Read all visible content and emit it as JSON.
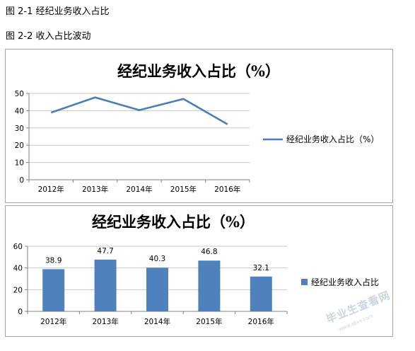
{
  "captions": {
    "fig1": "图 2-1 经纪业务收入占比",
    "fig2": "图 2-2 收入占比波动"
  },
  "chart_data": [
    {
      "type": "line",
      "title": "经纪业务收入占比（%）",
      "categories": [
        "2012年",
        "2013年",
        "2014年",
        "2015年",
        "2016年"
      ],
      "series": [
        {
          "name": "经纪业务收入占比（%）",
          "values": [
            38.9,
            47.7,
            40.3,
            46.8,
            32.1
          ],
          "color": "#4a7ebb"
        }
      ],
      "ylim": [
        0,
        50
      ],
      "yticks": [
        "0",
        "10",
        "20",
        "30",
        "40",
        "50"
      ],
      "grid": true,
      "legend": "right"
    },
    {
      "type": "bar",
      "title": "经纪业务收入占比（%）",
      "categories": [
        "2012年",
        "2013年",
        "2014年",
        "2015年",
        "2016年"
      ],
      "series": [
        {
          "name": "经纪业务收入占比",
          "values": [
            38.9,
            47.7,
            40.3,
            46.8,
            32.1
          ],
          "color": "#4f81bd"
        }
      ],
      "data_labels": [
        "38.9",
        "47.7",
        "40.3",
        "46.8",
        "32.1"
      ],
      "ylim": [
        0,
        60
      ],
      "yticks": [
        "0",
        "20",
        "40",
        "60"
      ],
      "grid": true,
      "legend": "right"
    }
  ],
  "watermark": {
    "text": "毕业生查看网",
    "sub": "www.sbvv.com"
  }
}
